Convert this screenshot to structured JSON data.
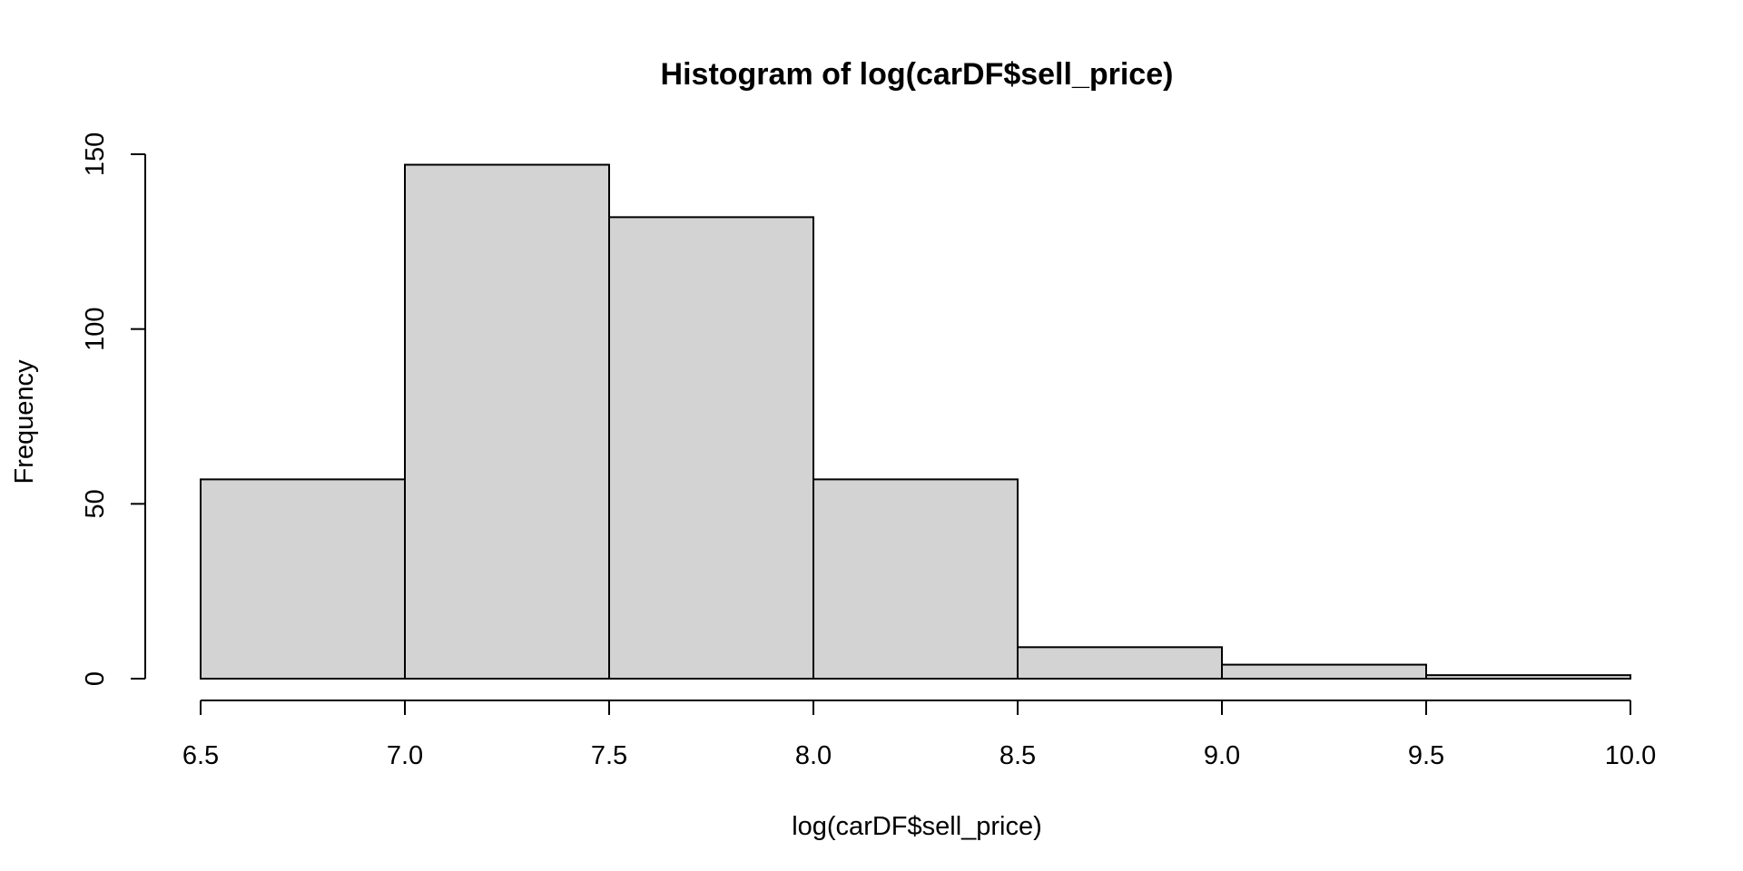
{
  "chart_data": {
    "type": "bar",
    "title": "Histogram of log(carDF$sell_price)",
    "xlabel": "log(carDF$sell_price)",
    "ylabel": "Frequency",
    "bins": [
      {
        "start": 6.5,
        "end": 7.0,
        "count": 57
      },
      {
        "start": 7.0,
        "end": 7.5,
        "count": 147
      },
      {
        "start": 7.5,
        "end": 8.0,
        "count": 132
      },
      {
        "start": 8.0,
        "end": 8.5,
        "count": 57
      },
      {
        "start": 8.5,
        "end": 9.0,
        "count": 9
      },
      {
        "start": 9.0,
        "end": 9.5,
        "count": 4
      },
      {
        "start": 9.5,
        "end": 10.0,
        "count": 1
      }
    ],
    "xlim": [
      6.5,
      10.0
    ],
    "ylim": [
      0,
      150
    ],
    "x_ticks": [
      "6.5",
      "7.0",
      "7.5",
      "8.0",
      "8.5",
      "9.0",
      "9.5",
      "10.0"
    ],
    "x_tick_values": [
      6.5,
      7.0,
      7.5,
      8.0,
      8.5,
      9.0,
      9.5,
      10.0
    ],
    "y_ticks": [
      "0",
      "50",
      "100",
      "150"
    ],
    "y_tick_values": [
      0,
      50,
      100,
      150
    ],
    "grid": false,
    "bar_fill": "#d3d3d3",
    "bar_stroke": "#000000"
  }
}
